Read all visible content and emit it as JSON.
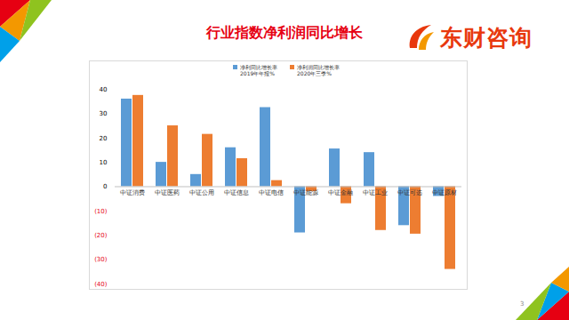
{
  "chart_data": {
    "type": "bar",
    "title": "行业指数净利润同比增长",
    "categories": [
      "中证消费",
      "中证医药",
      "中证公用",
      "中证信息",
      "中证电信",
      "中证能源",
      "中证金融",
      "中证工业",
      "中证可选",
      "中证原材"
    ],
    "series": [
      {
        "name": "净利同比增长率 2019年年报%",
        "color": "#5b9bd5",
        "values": [
          36,
          10,
          5,
          16,
          32.5,
          -19,
          15.5,
          14,
          -16,
          -4
        ]
      },
      {
        "name": "净利润同比增长率 2020年三季%",
        "color": "#ed7d31",
        "values": [
          37.5,
          25,
          21.5,
          11.5,
          2.5,
          -2,
          -7,
          -18,
          -19.5,
          -34
        ]
      }
    ],
    "ylim": [
      -40,
      40
    ],
    "yticks": [
      {
        "value": -40,
        "label": "(40)"
      },
      {
        "value": -30,
        "label": "(30)"
      },
      {
        "value": -20,
        "label": "(20)"
      },
      {
        "value": -10,
        "label": "(10)"
      },
      0,
      10,
      20,
      30,
      40
    ],
    "legend": "top"
  },
  "slide": {
    "logo": "东财咨询",
    "page": "3"
  }
}
